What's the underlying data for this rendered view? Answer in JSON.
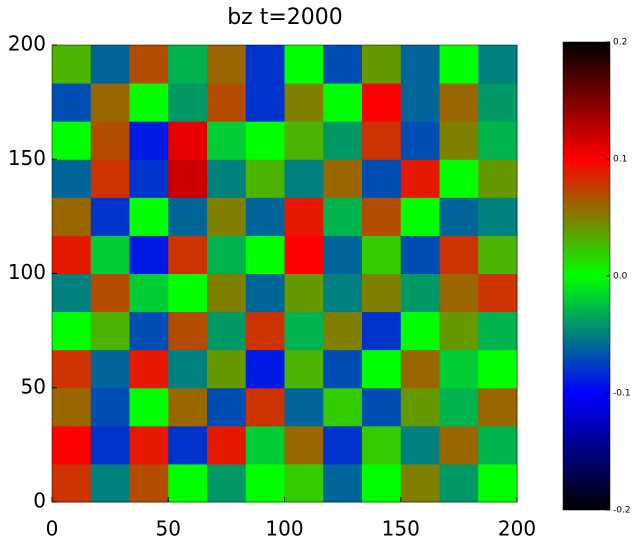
{
  "chart_data": {
    "type": "heatmap",
    "title": "bz  t=2000",
    "xlim": [
      0,
      200
    ],
    "ylim": [
      0,
      200
    ],
    "xticks": [
      0,
      50,
      100,
      150,
      200
    ],
    "yticks": [
      0,
      50,
      100,
      150,
      200
    ],
    "zlim": [
      -0.2,
      0.2
    ],
    "zticks": [
      0.2,
      0.1,
      {
        "value": 0,
        "label": "0.0"
      },
      -0.1,
      -0.2
    ],
    "colormap": [
      "#000000",
      "#0000ff",
      "#00ff00",
      "#ff0000",
      "#000000"
    ],
    "z": [
      [
        0.08,
        -0.05,
        0.07,
        0.0,
        -0.04,
        0.0,
        0.02,
        -0.06,
        0.0,
        0.05,
        -0.04,
        0.0
      ],
      [
        0.1,
        -0.08,
        0.09,
        -0.08,
        0.09,
        -0.02,
        0.06,
        -0.08,
        0.02,
        -0.05,
        0.06,
        -0.03
      ],
      [
        0.06,
        -0.07,
        0.0,
        0.06,
        -0.07,
        0.08,
        -0.06,
        0.02,
        -0.07,
        0.04,
        -0.03,
        0.06
      ],
      [
        0.08,
        -0.06,
        0.09,
        -0.05,
        0.04,
        -0.09,
        0.03,
        -0.07,
        0.0,
        0.06,
        -0.02,
        0.0
      ],
      [
        0.0,
        0.03,
        -0.07,
        0.07,
        -0.04,
        0.08,
        -0.03,
        0.05,
        -0.08,
        0.0,
        0.04,
        -0.03
      ],
      [
        -0.05,
        0.07,
        -0.02,
        0.0,
        0.05,
        -0.06,
        0.04,
        -0.05,
        0.05,
        -0.04,
        0.06,
        0.08
      ],
      [
        0.09,
        -0.02,
        -0.09,
        0.08,
        -0.03,
        0.0,
        0.1,
        -0.06,
        0.02,
        -0.07,
        0.08,
        0.03
      ],
      [
        0.06,
        -0.08,
        0.0,
        -0.06,
        0.05,
        -0.06,
        0.09,
        -0.03,
        0.07,
        0.0,
        -0.06,
        -0.05
      ],
      [
        -0.06,
        0.08,
        -0.08,
        0.12,
        -0.05,
        0.03,
        -0.05,
        0.06,
        -0.07,
        0.09,
        0.0,
        0.04
      ],
      [
        0.0,
        0.07,
        -0.09,
        0.11,
        -0.02,
        0.0,
        0.03,
        -0.04,
        0.08,
        -0.07,
        0.05,
        -0.03
      ],
      [
        -0.07,
        0.06,
        0.0,
        -0.04,
        0.07,
        -0.08,
        0.05,
        0.0,
        0.1,
        -0.06,
        0.06,
        -0.04
      ],
      [
        0.03,
        -0.06,
        0.07,
        -0.03,
        0.06,
        -0.08,
        0.0,
        -0.07,
        0.04,
        -0.06,
        0.0,
        -0.05
      ]
    ]
  }
}
